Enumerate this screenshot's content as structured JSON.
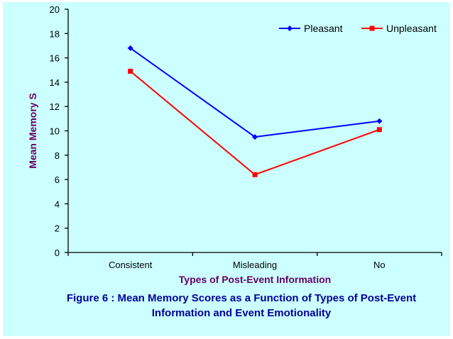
{
  "chart_data": {
    "type": "line",
    "categories": [
      "Consistent",
      "Misleading",
      "No"
    ],
    "series": [
      {
        "name": "Pleasant",
        "values": [
          16.8,
          9.5,
          10.8
        ],
        "color": "#0000ff",
        "marker": "diamond"
      },
      {
        "name": "Unpleasant",
        "values": [
          14.9,
          6.4,
          10.1
        ],
        "color": "#ff0000",
        "marker": "square"
      }
    ],
    "xlabel": "Types of Post-Event Information",
    "ylabel": "Mean Memory S",
    "ylim": [
      0,
      20
    ],
    "yticks": [
      0,
      2,
      4,
      6,
      8,
      10,
      12,
      14,
      16,
      18,
      20
    ],
    "grid": false,
    "legend_position": "top-right"
  },
  "caption": "Figure 6 : Mean Memory Scores as a Function of Types of Post-Event Information and Event Emotionality",
  "colors": {
    "background": "#ccffff",
    "axis_title": "#660066",
    "caption": "#000099"
  }
}
